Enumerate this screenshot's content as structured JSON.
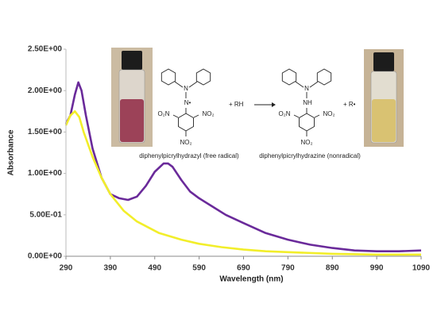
{
  "chart_data": {
    "type": "line",
    "x_label": "Wavelength (nm)",
    "y_label": "Absorbance",
    "xlim": [
      290,
      1090
    ],
    "xticks": [
      290,
      390,
      490,
      590,
      690,
      790,
      890,
      990,
      1090
    ],
    "ylim": [
      0,
      2.5
    ],
    "yticks": [
      {
        "value": 0,
        "label": "0.00E+00"
      },
      {
        "value": 0.5,
        "label": "5.00E-01"
      },
      {
        "value": 1.0,
        "label": "1.00E+00"
      },
      {
        "value": 1.5,
        "label": "1.50E+00"
      },
      {
        "value": 2.0,
        "label": "2.00E+00"
      },
      {
        "value": 2.5,
        "label": "2.50E+00"
      }
    ],
    "grid": false,
    "series": [
      {
        "color": "#6a2a9a",
        "x": [
          290,
          300,
          310,
          318,
          325,
          335,
          350,
          370,
          390,
          410,
          430,
          450,
          470,
          490,
          510,
          520,
          530,
          550,
          570,
          590,
          620,
          650,
          690,
          740,
          790,
          840,
          890,
          940,
          990,
          1040,
          1090
        ],
        "values": [
          1.6,
          1.7,
          1.95,
          2.1,
          2.0,
          1.7,
          1.3,
          0.95,
          0.75,
          0.7,
          0.68,
          0.72,
          0.85,
          1.02,
          1.12,
          1.12,
          1.08,
          0.92,
          0.78,
          0.7,
          0.6,
          0.5,
          0.4,
          0.28,
          0.2,
          0.14,
          0.1,
          0.07,
          0.06,
          0.06,
          0.07
        ]
      },
      {
        "color": "#f2ee2a",
        "x": [
          290,
          300,
          310,
          320,
          330,
          350,
          370,
          390,
          420,
          450,
          500,
          550,
          590,
          640,
          690,
          740,
          790,
          890,
          990,
          1090
        ],
        "values": [
          1.58,
          1.7,
          1.75,
          1.68,
          1.5,
          1.2,
          0.95,
          0.75,
          0.55,
          0.42,
          0.28,
          0.2,
          0.15,
          0.11,
          0.08,
          0.06,
          0.05,
          0.03,
          0.02,
          0.02
        ]
      }
    ],
    "annotations": [
      "N",
      "N•",
      "O₂N",
      "NO₂",
      "NO₂",
      "diphenylpicrylhydrazyl (free radical)",
      "+ RH",
      "N",
      "NH",
      "O₂N",
      "NO₂",
      "NO₂",
      "diphenylpicrylhydrazine (nonradical)",
      "+ R•"
    ]
  }
}
